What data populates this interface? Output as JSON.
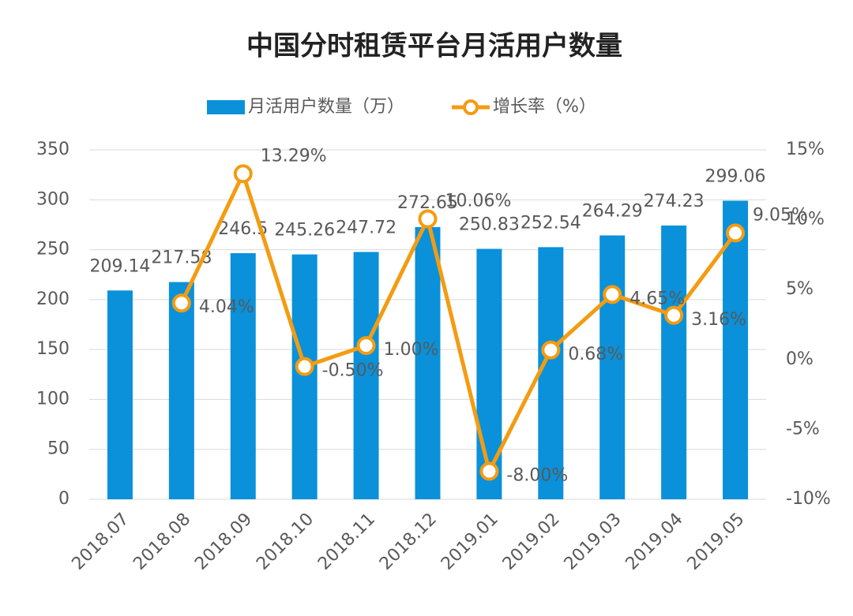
{
  "chart_data": {
    "type": "bar_line",
    "title": "中国分时租赁平台月活用户数量",
    "categories": [
      "2018.07",
      "2018.08",
      "2018.09",
      "2018.10",
      "2018.11",
      "2018.12",
      "2019.01",
      "2019.02",
      "2019.03",
      "2019.04",
      "2019.05"
    ],
    "series": [
      {
        "name": "月活用户数量（万）",
        "type": "bar",
        "color": "#0a91da",
        "values": [
          209.14,
          217.58,
          246.5,
          245.26,
          247.72,
          272.65,
          250.83,
          252.54,
          264.29,
          274.23,
          299.06
        ]
      },
      {
        "name": "增长率（%）",
        "type": "line",
        "axis": "y2",
        "color": "#f39c12",
        "values": [
          null,
          4.04,
          13.29,
          -0.5,
          1.0,
          10.06,
          -8.0,
          0.68,
          4.65,
          3.16,
          9.05
        ],
        "value_labels": [
          null,
          "4.04%",
          "13.29%",
          "-0.50%",
          "1.00%",
          "10.06%",
          "-8.00%",
          "0.68%",
          "4.65%",
          "3.16%",
          "9.05%"
        ]
      }
    ],
    "ylim": [
      0,
      350
    ],
    "yticks": [
      0,
      50,
      100,
      150,
      200,
      250,
      300,
      350
    ],
    "y2lim": [
      -10,
      15
    ],
    "y2ticks": [
      {
        "value": -10,
        "label": "-10%"
      },
      {
        "value": -5,
        "label": "-5%"
      },
      {
        "value": 0,
        "label": "0%"
      },
      {
        "value": 5,
        "label": "5%"
      },
      {
        "value": 10,
        "label": "10%"
      },
      {
        "value": 15,
        "label": "15%"
      }
    ],
    "grid": true,
    "legend": "top"
  }
}
